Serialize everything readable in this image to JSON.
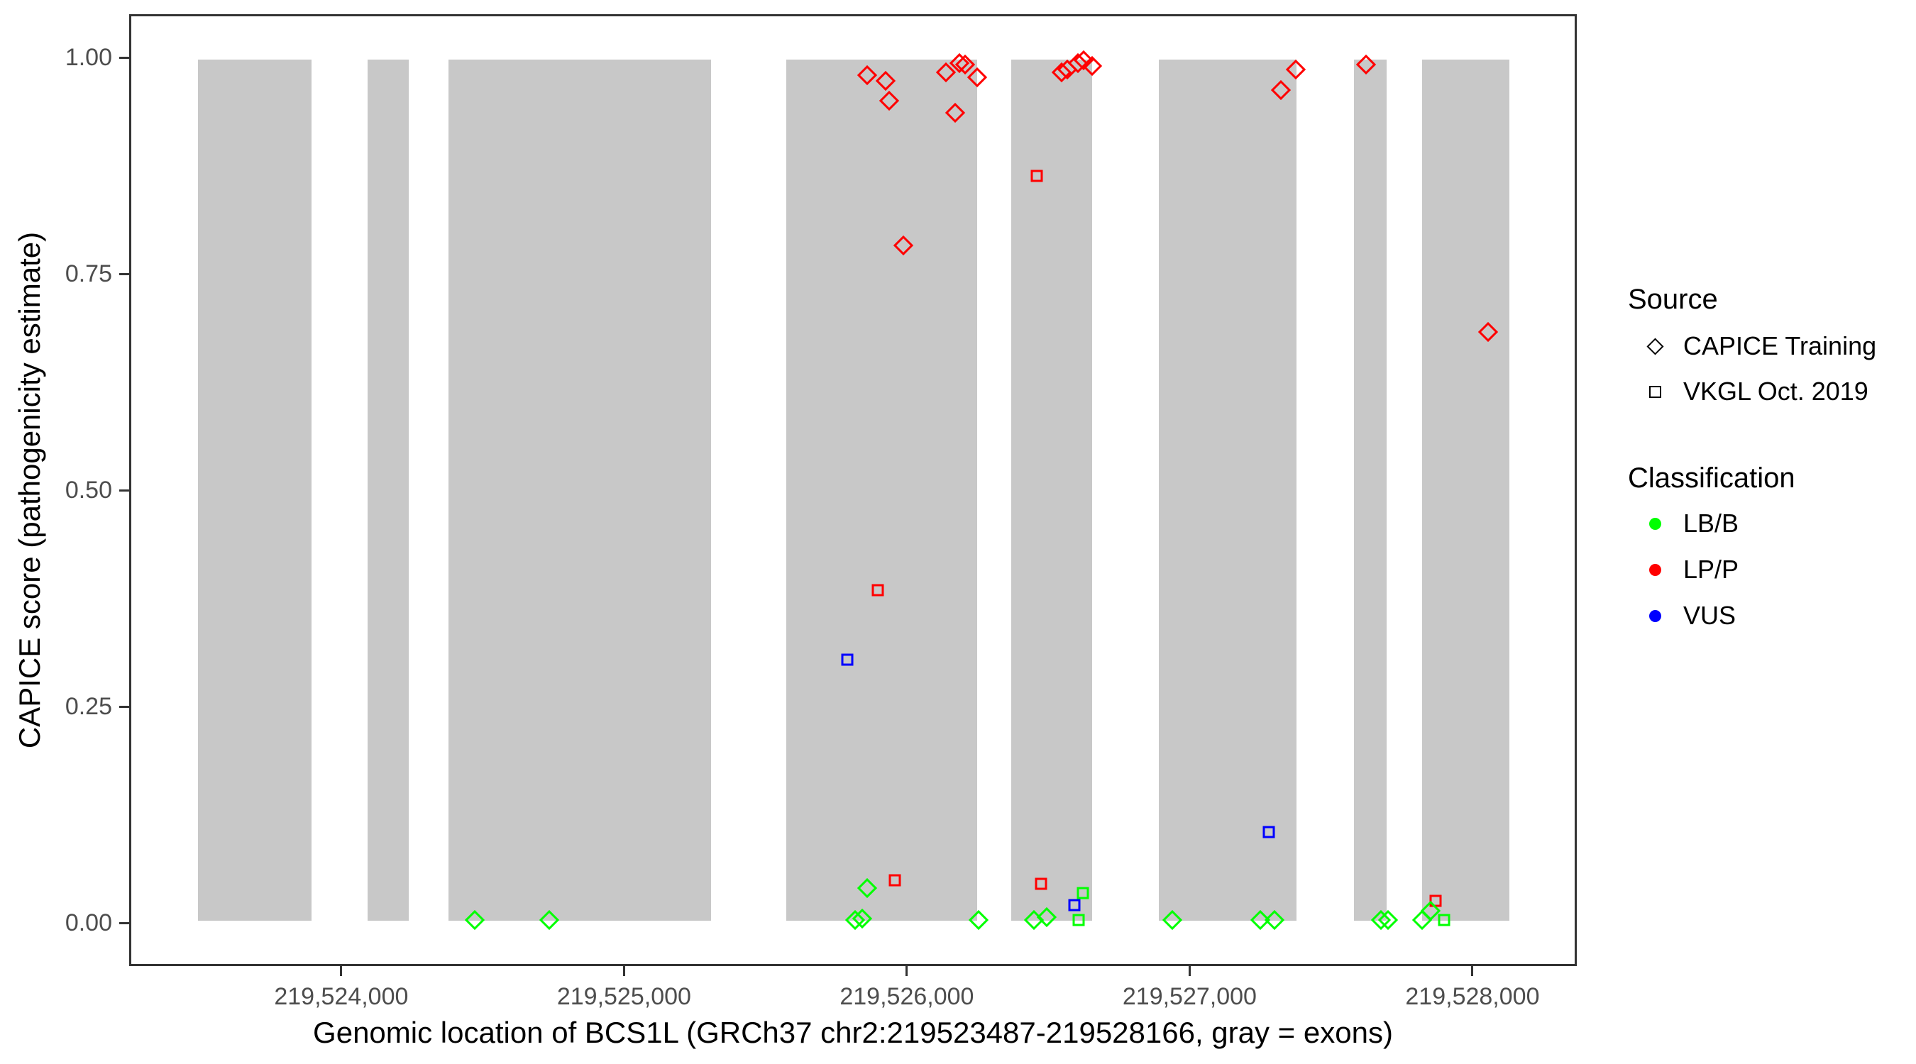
{
  "colors": {
    "exon_fill": "#C8C8C8",
    "panel_border": "#333333",
    "tick": "#333333",
    "tick_label": "#4D4D4D",
    "lb_b": "#00FF00",
    "lp_p": "#FF0000",
    "vus": "#0000FF"
  },
  "legend": {
    "source": {
      "title": "Source",
      "items": [
        {
          "label": "CAPICE Training",
          "shape": "diamond"
        },
        {
          "label": "VKGL Oct. 2019",
          "shape": "square"
        }
      ]
    },
    "classification": {
      "title": "Classification",
      "items": [
        {
          "label": "LB/B",
          "color": "#00FF00"
        },
        {
          "label": "LP/P",
          "color": "#FF0000"
        },
        {
          "label": "VUS",
          "color": "#0000FF"
        }
      ]
    }
  },
  "chart_data": {
    "type": "scatter",
    "title": "",
    "x_axis": {
      "label": "Genomic location of BCS1L (GRCh37 chr2:219523487-219528166, gray = exons)",
      "range": [
        219523250,
        219528369
      ],
      "ticks": [
        219524000,
        219525000,
        219526000,
        219527000,
        219528000
      ],
      "tick_labels": [
        "219,524,000",
        "219,525,000",
        "219,526,000",
        "219,527,000",
        "219,528,000"
      ]
    },
    "y_axis": {
      "label": "CAPICE score (pathogenicity estimate)",
      "range": [
        -0.05,
        1.05
      ],
      "ticks": [
        0,
        0.25,
        0.5,
        0.75,
        1
      ],
      "tick_labels": [
        "0.00",
        "0.25",
        "0.50",
        "0.75",
        "1.00"
      ]
    },
    "exons_note": "gray = exons",
    "exons": [
      [
        219523487,
        219523890
      ],
      [
        219524088,
        219524233
      ],
      [
        219524374,
        219525307
      ],
      [
        219525573,
        219526251
      ],
      [
        219526371,
        219526657
      ],
      [
        219526893,
        219527383
      ],
      [
        219527586,
        219527701
      ],
      [
        219527827,
        219528138
      ]
    ],
    "series": [
      {
        "name": "CAPICE Training LP/P",
        "source": "CAPICE Training",
        "classification": "LP/P",
        "marker": "diamond",
        "color": "#FF0000",
        "z": 15,
        "points": [
          [
            219525860,
            0.982
          ],
          [
            219525925,
            0.975
          ],
          [
            219525937,
            0.952
          ],
          [
            219525987,
            0.784
          ],
          [
            219526138,
            0.985
          ],
          [
            219526173,
            0.938
          ],
          [
            219526186,
            0.996
          ],
          [
            219526206,
            0.994
          ],
          [
            219526251,
            0.979
          ],
          [
            219526549,
            0.985
          ],
          [
            219526569,
            0.988
          ],
          [
            219526607,
            0.996
          ],
          [
            219526627,
            0.999
          ],
          [
            219526657,
            0.992
          ],
          [
            219527327,
            0.964
          ],
          [
            219527380,
            0.988
          ],
          [
            219527628,
            0.994
          ],
          [
            219528063,
            0.684
          ]
        ]
      },
      {
        "name": "CAPICE Training LB/B",
        "source": "CAPICE Training",
        "classification": "LB/B",
        "marker": "diamond",
        "color": "#00FF00",
        "z": 14,
        "points": [
          [
            219524467,
            0.001
          ],
          [
            219524733,
            0.001
          ],
          [
            219525817,
            0.001
          ],
          [
            219525842,
            0.003
          ],
          [
            219525860,
            0.038
          ],
          [
            219526256,
            0.001
          ],
          [
            219526452,
            0.001
          ],
          [
            219526497,
            0.004
          ],
          [
            219526943,
            0.001
          ],
          [
            219527255,
            0.001
          ],
          [
            219527305,
            0.001
          ],
          [
            219527683,
            0.001
          ],
          [
            219527706,
            0.001
          ],
          [
            219527827,
            0.001
          ],
          [
            219527859,
            0.012
          ]
        ]
      },
      {
        "name": "VKGL Oct. 2019 LP/P",
        "source": "VKGL Oct. 2019",
        "classification": "LP/P",
        "marker": "square",
        "color": "#FF0000",
        "z": 13,
        "points": [
          [
            219525897,
            0.384
          ],
          [
            219525957,
            0.047
          ],
          [
            219526462,
            0.865
          ],
          [
            219526477,
            0.043
          ],
          [
            219527876,
            0.023
          ]
        ]
      },
      {
        "name": "VKGL Oct. 2019 VUS",
        "source": "VKGL Oct. 2019",
        "classification": "VUS",
        "marker": "square",
        "color": "#0000FF",
        "z": 12,
        "points": [
          [
            219525789,
            0.303
          ],
          [
            219526595,
            0.018
          ],
          [
            219527285,
            0.103
          ]
        ]
      },
      {
        "name": "VKGL Oct. 2019 LB/B",
        "source": "VKGL Oct. 2019",
        "classification": "LB/B",
        "marker": "square",
        "color": "#00FF00",
        "z": 11,
        "points": [
          [
            219526610,
            0.001
          ],
          [
            219526625,
            0.032
          ],
          [
            219527907,
            0.001
          ]
        ]
      }
    ]
  }
}
